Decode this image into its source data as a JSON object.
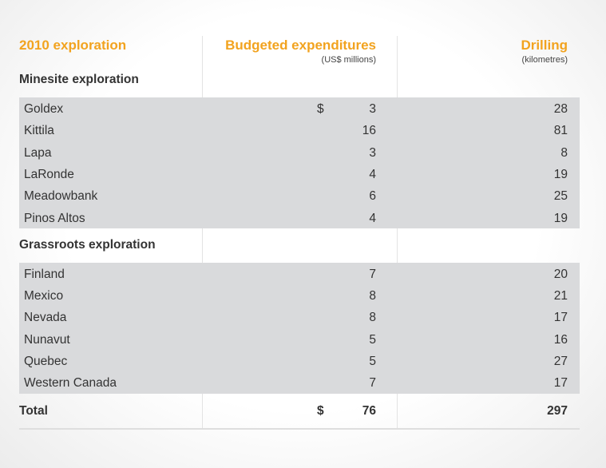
{
  "header": {
    "title": "2010 exploration",
    "expenditures": "Budgeted expenditures",
    "expenditures_unit": "(US$ millions)",
    "drilling": "Drilling",
    "drilling_unit": "(kilometres)"
  },
  "currency": "$",
  "sections": [
    {
      "title": "Minesite exploration",
      "rows": [
        [
          "Goldex",
          3,
          28
        ],
        [
          "Kittila",
          16,
          81
        ],
        [
          "Lapa",
          3,
          8
        ],
        [
          "LaRonde",
          4,
          19
        ],
        [
          "Meadowbank",
          6,
          25
        ],
        [
          "Pinos Altos",
          4,
          19
        ]
      ]
    },
    {
      "title": "Grassroots exploration",
      "rows": [
        [
          "Finland",
          7,
          20
        ],
        [
          "Mexico",
          8,
          21
        ],
        [
          "Nevada",
          8,
          17
        ],
        [
          "Nunavut",
          5,
          16
        ],
        [
          "Quebec",
          5,
          27
        ],
        [
          "Western Canada",
          7,
          17
        ]
      ]
    }
  ],
  "total": {
    "label": "Total",
    "expenditures": 76,
    "drilling": 297
  }
}
